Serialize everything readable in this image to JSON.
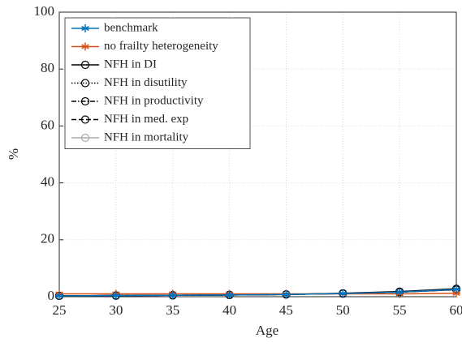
{
  "chart_data": {
    "type": "line",
    "x_label": "Age",
    "y_label": "%",
    "x": [
      25,
      30,
      35,
      40,
      45,
      50,
      55,
      60
    ],
    "xlim": [
      25,
      60
    ],
    "xticks": [
      25,
      30,
      35,
      40,
      45,
      50,
      55,
      60
    ],
    "ylim": [
      0,
      100
    ],
    "yticks": [
      0,
      20,
      40,
      60,
      80,
      100
    ],
    "grid": true,
    "legend": "upper-left",
    "series": [
      {
        "name": "benchmark",
        "color": "#0072bd",
        "dash": "solid",
        "marker": "asterisk",
        "values": [
          0.3,
          0.4,
          0.5,
          0.6,
          0.8,
          1.1,
          1.6,
          2.6
        ]
      },
      {
        "name": "no frailty heterogeneity",
        "color": "#d95319",
        "dash": "solid",
        "marker": "asterisk",
        "values": [
          1.0,
          1.0,
          1.0,
          1.0,
          1.0,
          1.0,
          1.0,
          1.2
        ]
      },
      {
        "name": "NFH in DI",
        "color": "#000000",
        "dash": "solid",
        "marker": "circle",
        "values": [
          0.3,
          0.4,
          0.5,
          0.6,
          0.8,
          1.2,
          1.8,
          2.8
        ]
      },
      {
        "name": "NFH in disutility",
        "color": "#000000",
        "dash": "dotted",
        "marker": "circle",
        "values": [
          0.3,
          0.4,
          0.5,
          0.6,
          0.8,
          1.1,
          1.6,
          2.5
        ]
      },
      {
        "name": "NFH in productivity",
        "color": "#000000",
        "dash": "dashdot",
        "marker": "circle",
        "values": [
          0.3,
          0.4,
          0.5,
          0.6,
          0.8,
          1.1,
          1.6,
          2.6
        ]
      },
      {
        "name": "NFH in med. exp",
        "color": "#000000",
        "dash": "dashed",
        "marker": "circle",
        "values": [
          0.3,
          0.4,
          0.5,
          0.6,
          0.8,
          1.1,
          1.6,
          2.5
        ]
      },
      {
        "name": "NFH in mortality",
        "color": "#aaaaaa",
        "dash": "solid",
        "marker": "circle",
        "values": [
          0.3,
          0.4,
          0.5,
          0.6,
          0.8,
          1.1,
          1.6,
          2.4
        ]
      }
    ]
  }
}
